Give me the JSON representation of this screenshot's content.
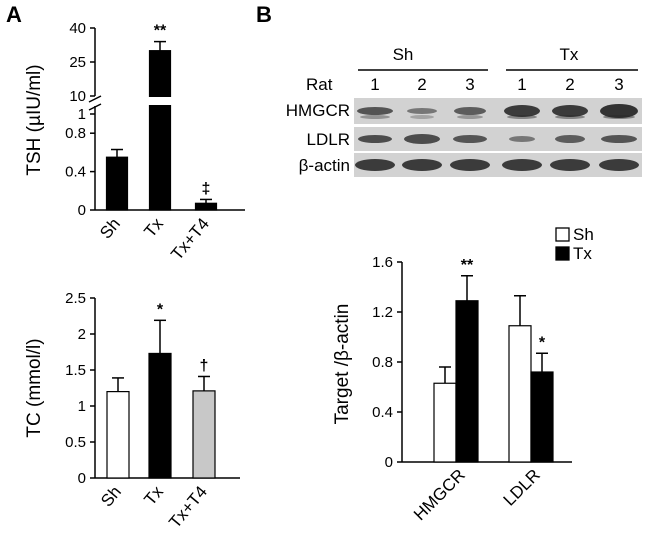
{
  "panels": {
    "a": "A",
    "b": "B"
  },
  "colors": {
    "black": "#000000",
    "white": "#ffffff",
    "gray": "#c8c8c8",
    "blot_bg": "#d2d2d2",
    "band": "#2a2a2a"
  },
  "chart_data": [
    {
      "id": "tsh",
      "type": "bar",
      "ylabel": "TSH (µIU/ml)",
      "categories": [
        "Sh",
        "Tx",
        "Tx+T4"
      ],
      "values": [
        0.55,
        30,
        0.07
      ],
      "errors": [
        0.08,
        4,
        0.04
      ],
      "colors": [
        "#000000",
        "#000000",
        "#000000"
      ],
      "significance": [
        "",
        "**",
        "‡"
      ],
      "axis_break": true,
      "y_ticks_lower": [
        "0",
        "0.4",
        "0.8",
        "1"
      ],
      "y_ticks_upper": [
        "10",
        "25",
        "40"
      ]
    },
    {
      "id": "tc",
      "type": "bar",
      "ylabel": "TC (mmol/l)",
      "categories": [
        "Sh",
        "Tx",
        "Tx+T4"
      ],
      "values": [
        1.2,
        1.73,
        1.21
      ],
      "errors": [
        0.19,
        0.46,
        0.2
      ],
      "colors": [
        "#ffffff",
        "#000000",
        "#c8c8c8"
      ],
      "significance": [
        "",
        "*",
        "†"
      ],
      "ylim": [
        0,
        2.5
      ],
      "y_ticks": [
        "0",
        "0.5",
        "1",
        "1.5",
        "2",
        "2.5"
      ]
    },
    {
      "id": "target",
      "type": "bar",
      "ylabel": "Target /β-actin",
      "categories": [
        "HMGCR",
        "LDLR"
      ],
      "series": [
        {
          "name": "Sh",
          "values": [
            0.63,
            1.09
          ],
          "errors": [
            0.13,
            0.24
          ],
          "color": "#ffffff"
        },
        {
          "name": "Tx",
          "values": [
            1.29,
            0.72
          ],
          "errors": [
            0.2,
            0.15
          ],
          "color": "#000000"
        }
      ],
      "significance": [
        [
          "",
          "**"
        ],
        [
          "",
          "*"
        ]
      ],
      "ylim": [
        0,
        1.6
      ],
      "y_ticks": [
        "0",
        "0.4",
        "0.8",
        "1.2",
        "1.6"
      ],
      "legend": "top-right"
    }
  ],
  "blot": {
    "groups": [
      "Sh",
      "Tx"
    ],
    "lane_title": "Rat",
    "lanes": [
      "1",
      "2",
      "3",
      "1",
      "2",
      "3"
    ],
    "rows": [
      "HMGCR",
      "LDLR",
      "β-actin"
    ]
  }
}
